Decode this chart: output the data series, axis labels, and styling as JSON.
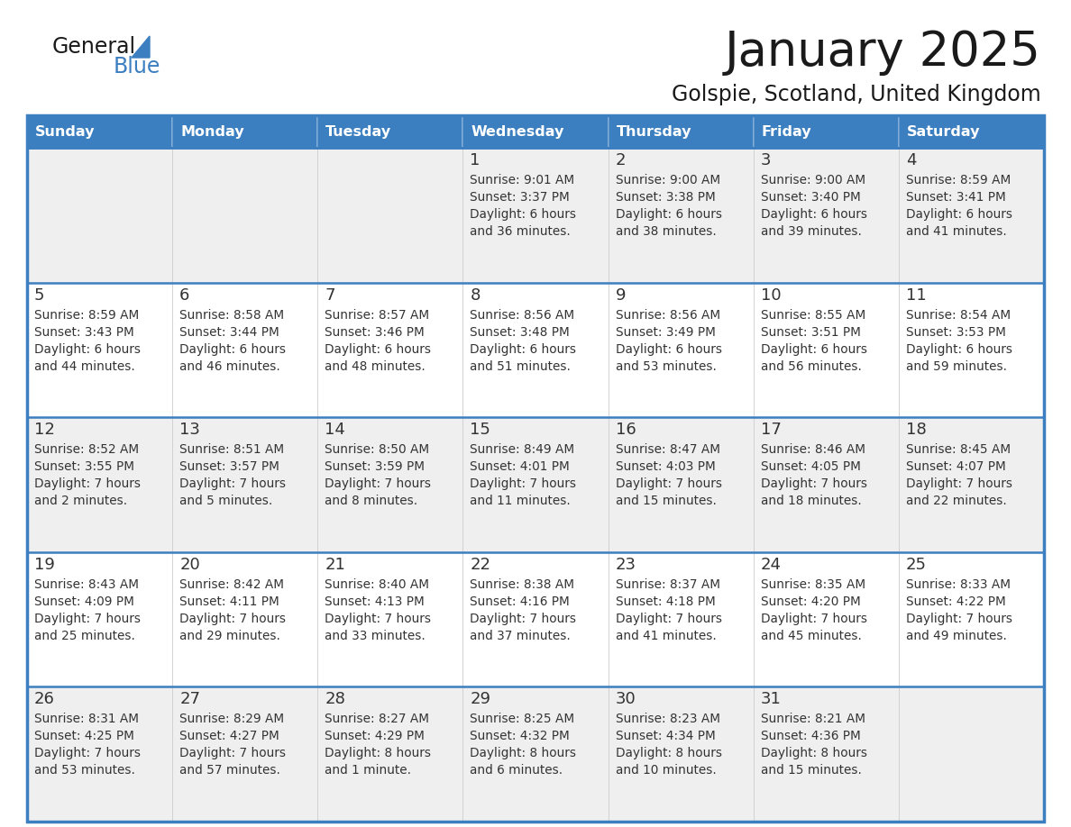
{
  "title": "January 2025",
  "subtitle": "Golspie, Scotland, United Kingdom",
  "days_of_week": [
    "Sunday",
    "Monday",
    "Tuesday",
    "Wednesday",
    "Thursday",
    "Friday",
    "Saturday"
  ],
  "header_bg": "#3c7fc0",
  "header_text": "#ffffff",
  "row_bg_gray": "#efefef",
  "row_bg_white": "#ffffff",
  "border_color": "#3c7fc0",
  "text_color": "#333333",
  "title_color": "#1a1a1a",
  "logo_general_color": "#1a1a1a",
  "logo_blue_color": "#3c7fc0",
  "calendar_data": [
    [
      null,
      null,
      null,
      {
        "day": 1,
        "sunrise": "9:01 AM",
        "sunset": "3:37 PM",
        "daylight": "6 hours",
        "daylight2": "and 36 minutes."
      },
      {
        "day": 2,
        "sunrise": "9:00 AM",
        "sunset": "3:38 PM",
        "daylight": "6 hours",
        "daylight2": "and 38 minutes."
      },
      {
        "day": 3,
        "sunrise": "9:00 AM",
        "sunset": "3:40 PM",
        "daylight": "6 hours",
        "daylight2": "and 39 minutes."
      },
      {
        "day": 4,
        "sunrise": "8:59 AM",
        "sunset": "3:41 PM",
        "daylight": "6 hours",
        "daylight2": "and 41 minutes."
      }
    ],
    [
      {
        "day": 5,
        "sunrise": "8:59 AM",
        "sunset": "3:43 PM",
        "daylight": "6 hours",
        "daylight2": "and 44 minutes."
      },
      {
        "day": 6,
        "sunrise": "8:58 AM",
        "sunset": "3:44 PM",
        "daylight": "6 hours",
        "daylight2": "and 46 minutes."
      },
      {
        "day": 7,
        "sunrise": "8:57 AM",
        "sunset": "3:46 PM",
        "daylight": "6 hours",
        "daylight2": "and 48 minutes."
      },
      {
        "day": 8,
        "sunrise": "8:56 AM",
        "sunset": "3:48 PM",
        "daylight": "6 hours",
        "daylight2": "and 51 minutes."
      },
      {
        "day": 9,
        "sunrise": "8:56 AM",
        "sunset": "3:49 PM",
        "daylight": "6 hours",
        "daylight2": "and 53 minutes."
      },
      {
        "day": 10,
        "sunrise": "8:55 AM",
        "sunset": "3:51 PM",
        "daylight": "6 hours",
        "daylight2": "and 56 minutes."
      },
      {
        "day": 11,
        "sunrise": "8:54 AM",
        "sunset": "3:53 PM",
        "daylight": "6 hours",
        "daylight2": "and 59 minutes."
      }
    ],
    [
      {
        "day": 12,
        "sunrise": "8:52 AM",
        "sunset": "3:55 PM",
        "daylight": "7 hours",
        "daylight2": "and 2 minutes."
      },
      {
        "day": 13,
        "sunrise": "8:51 AM",
        "sunset": "3:57 PM",
        "daylight": "7 hours",
        "daylight2": "and 5 minutes."
      },
      {
        "day": 14,
        "sunrise": "8:50 AM",
        "sunset": "3:59 PM",
        "daylight": "7 hours",
        "daylight2": "and 8 minutes."
      },
      {
        "day": 15,
        "sunrise": "8:49 AM",
        "sunset": "4:01 PM",
        "daylight": "7 hours",
        "daylight2": "and 11 minutes."
      },
      {
        "day": 16,
        "sunrise": "8:47 AM",
        "sunset": "4:03 PM",
        "daylight": "7 hours",
        "daylight2": "and 15 minutes."
      },
      {
        "day": 17,
        "sunrise": "8:46 AM",
        "sunset": "4:05 PM",
        "daylight": "7 hours",
        "daylight2": "and 18 minutes."
      },
      {
        "day": 18,
        "sunrise": "8:45 AM",
        "sunset": "4:07 PM",
        "daylight": "7 hours",
        "daylight2": "and 22 minutes."
      }
    ],
    [
      {
        "day": 19,
        "sunrise": "8:43 AM",
        "sunset": "4:09 PM",
        "daylight": "7 hours",
        "daylight2": "and 25 minutes."
      },
      {
        "day": 20,
        "sunrise": "8:42 AM",
        "sunset": "4:11 PM",
        "daylight": "7 hours",
        "daylight2": "and 29 minutes."
      },
      {
        "day": 21,
        "sunrise": "8:40 AM",
        "sunset": "4:13 PM",
        "daylight": "7 hours",
        "daylight2": "and 33 minutes."
      },
      {
        "day": 22,
        "sunrise": "8:38 AM",
        "sunset": "4:16 PM",
        "daylight": "7 hours",
        "daylight2": "and 37 minutes."
      },
      {
        "day": 23,
        "sunrise": "8:37 AM",
        "sunset": "4:18 PM",
        "daylight": "7 hours",
        "daylight2": "and 41 minutes."
      },
      {
        "day": 24,
        "sunrise": "8:35 AM",
        "sunset": "4:20 PM",
        "daylight": "7 hours",
        "daylight2": "and 45 minutes."
      },
      {
        "day": 25,
        "sunrise": "8:33 AM",
        "sunset": "4:22 PM",
        "daylight": "7 hours",
        "daylight2": "and 49 minutes."
      }
    ],
    [
      {
        "day": 26,
        "sunrise": "8:31 AM",
        "sunset": "4:25 PM",
        "daylight": "7 hours",
        "daylight2": "and 53 minutes."
      },
      {
        "day": 27,
        "sunrise": "8:29 AM",
        "sunset": "4:27 PM",
        "daylight": "7 hours",
        "daylight2": "and 57 minutes."
      },
      {
        "day": 28,
        "sunrise": "8:27 AM",
        "sunset": "4:29 PM",
        "daylight": "8 hours",
        "daylight2": "and 1 minute."
      },
      {
        "day": 29,
        "sunrise": "8:25 AM",
        "sunset": "4:32 PM",
        "daylight": "8 hours",
        "daylight2": "and 6 minutes."
      },
      {
        "day": 30,
        "sunrise": "8:23 AM",
        "sunset": "4:34 PM",
        "daylight": "8 hours",
        "daylight2": "and 10 minutes."
      },
      {
        "day": 31,
        "sunrise": "8:21 AM",
        "sunset": "4:36 PM",
        "daylight": "8 hours",
        "daylight2": "and 15 minutes."
      },
      null
    ]
  ]
}
